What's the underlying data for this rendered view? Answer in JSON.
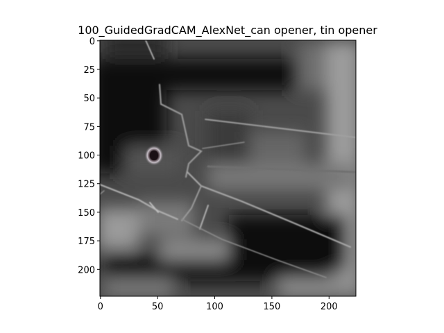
{
  "figure": {
    "title": "100_GuidedGradCAM_AlexNet_can opener, tin opener"
  },
  "image_axes": {
    "x_range": [
      0,
      224
    ],
    "y_range": [
      0,
      224
    ],
    "y_inverted": true,
    "x_ticks": [
      "0",
      "50",
      "100",
      "150",
      "200"
    ],
    "y_ticks": [
      "0",
      "25",
      "50",
      "75",
      "100",
      "125",
      "150",
      "175",
      "200"
    ]
  },
  "colors": {
    "background": "#ffffff",
    "image_base": "#4a4a4a",
    "image_dark": "#080808",
    "image_light": "#b8b8b8"
  }
}
